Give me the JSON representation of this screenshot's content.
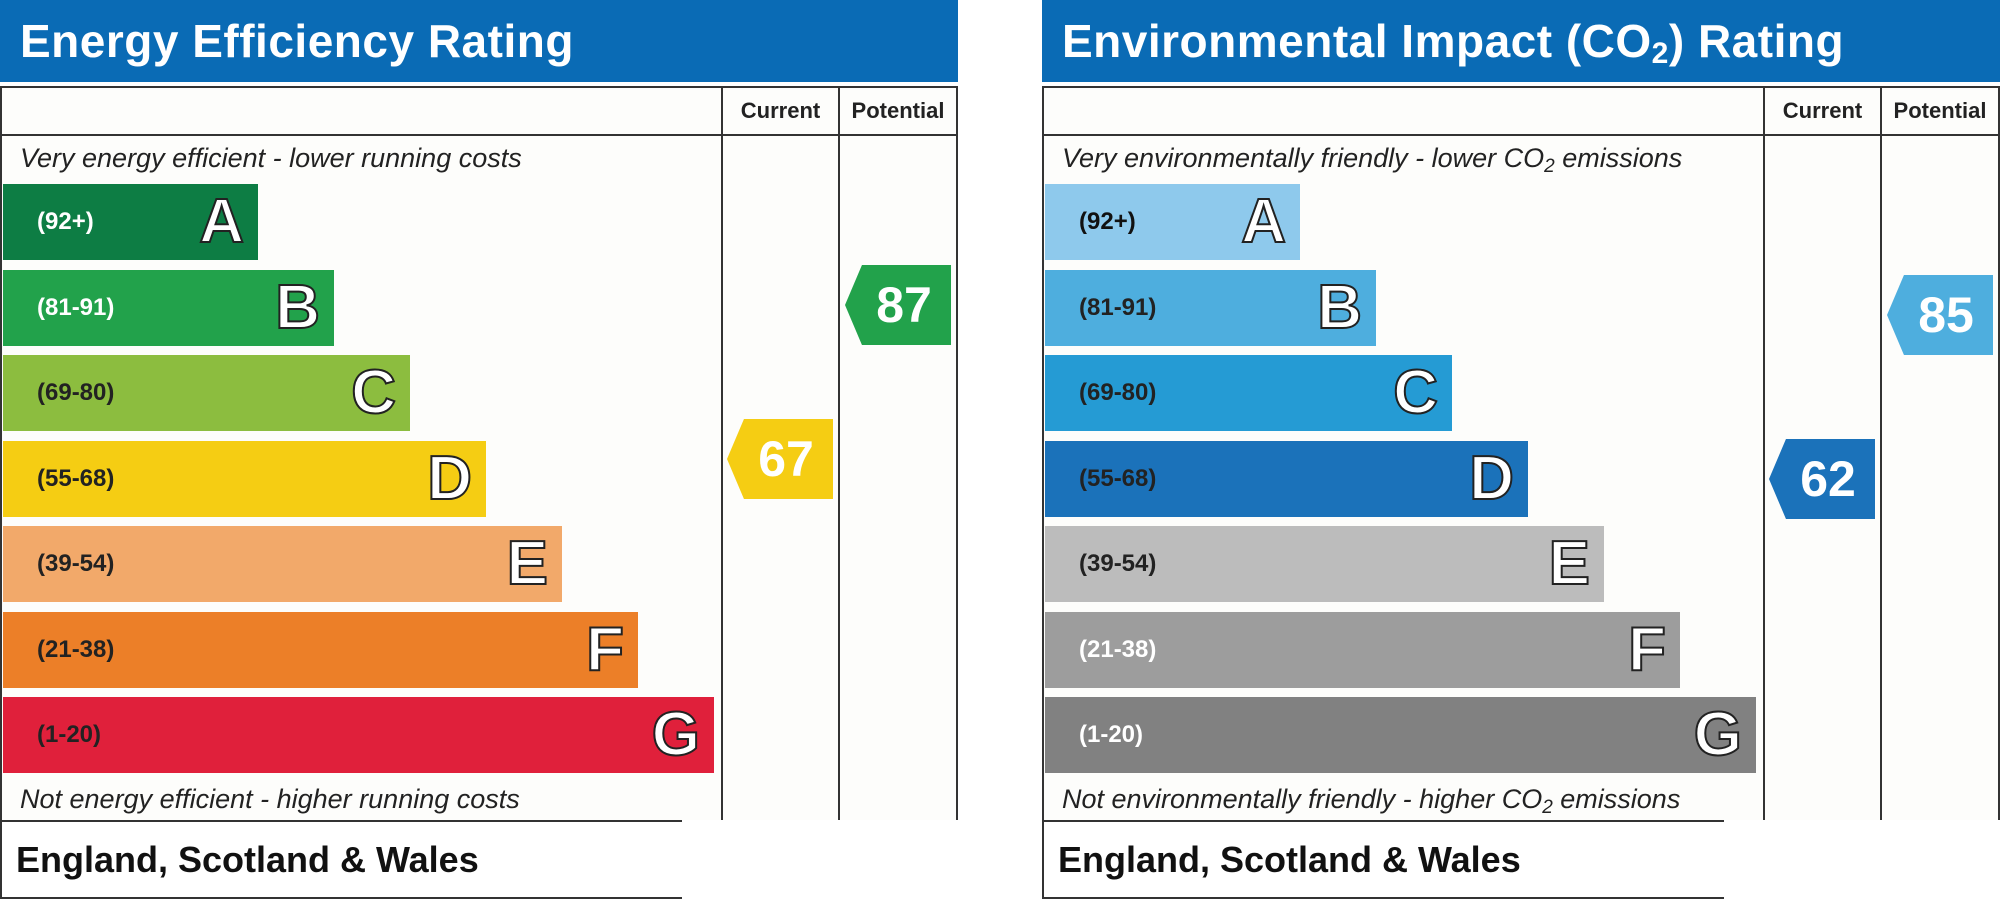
{
  "chart_data": [
    {
      "type": "bar",
      "title": "Energy Efficiency Rating",
      "columns": [
        "Current",
        "Potential"
      ],
      "top_note": "Very energy efficient - lower running costs",
      "bottom_note": "Not energy efficient - higher running costs",
      "footer": "England, Scotland & Wales",
      "bands": [
        {
          "letter": "A",
          "range": "(92+)",
          "color": "#0d7d44",
          "text_color": "#ffffff"
        },
        {
          "letter": "B",
          "range": "(81-91)",
          "color": "#22a24b",
          "text_color": "#ffffff"
        },
        {
          "letter": "C",
          "range": "(69-80)",
          "color": "#8cbd3f",
          "text_color": "#222222"
        },
        {
          "letter": "D",
          "range": "(55-68)",
          "color": "#f5cd13",
          "text_color": "#222222"
        },
        {
          "letter": "E",
          "range": "(39-54)",
          "color": "#f2a96a",
          "text_color": "#222222"
        },
        {
          "letter": "F",
          "range": "(21-38)",
          "color": "#ec7f28",
          "text_color": "#222222"
        },
        {
          "letter": "G",
          "range": "(1-20)",
          "color": "#e0203b",
          "text_color": "#222222"
        }
      ],
      "current": {
        "value": 67,
        "band": "D",
        "color": "#f5cd13"
      },
      "potential": {
        "value": 87,
        "band": "B",
        "color": "#22a24b"
      }
    },
    {
      "type": "bar",
      "title": "Environmental Impact (CO",
      "title_sub": "2",
      "title_end": ") Rating",
      "columns": [
        "Current",
        "Potential"
      ],
      "top_note": "Very environmentally friendly - lower CO",
      "top_note_sub": "2",
      "top_note_end": " emissions",
      "bottom_note": "Not environmentally friendly - higher CO",
      "bottom_note_sub": "2",
      "bottom_note_end": " emissions",
      "footer": "England, Scotland & Wales",
      "bands": [
        {
          "letter": "A",
          "range": "(92+)",
          "color": "#8ec9ec",
          "text_color": "#111111"
        },
        {
          "letter": "B",
          "range": "(81-91)",
          "color": "#4eaede",
          "text_color": "#222222"
        },
        {
          "letter": "C",
          "range": "(69-80)",
          "color": "#259bd4",
          "text_color": "#222222"
        },
        {
          "letter": "D",
          "range": "(55-68)",
          "color": "#1b72ba",
          "text_color": "#222222"
        },
        {
          "letter": "E",
          "range": "(39-54)",
          "color": "#bcbcbc",
          "text_color": "#222222"
        },
        {
          "letter": "F",
          "range": "(21-38)",
          "color": "#9d9d9d",
          "text_color": "#ffffff"
        },
        {
          "letter": "G",
          "range": "(1-20)",
          "color": "#818181",
          "text_color": "#ffffff"
        }
      ],
      "current": {
        "value": 62,
        "band": "D",
        "color": "#1b72ba"
      },
      "potential": {
        "value": 85,
        "band": "B",
        "color": "#4eaede"
      }
    }
  ]
}
